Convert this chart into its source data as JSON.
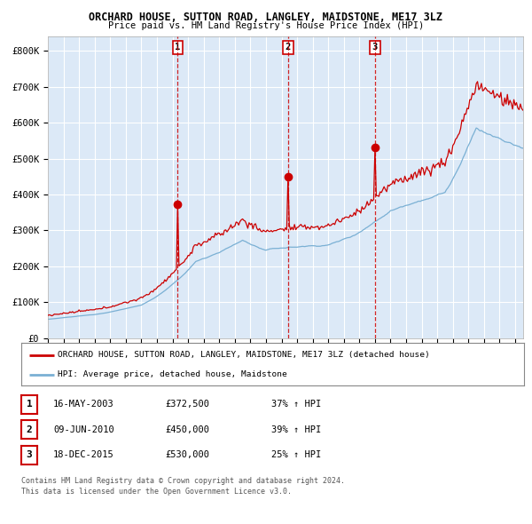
{
  "title": "ORCHARD HOUSE, SUTTON ROAD, LANGLEY, MAIDSTONE, ME17 3LZ",
  "subtitle": "Price paid vs. HM Land Registry's House Price Index (HPI)",
  "plot_bg_color": "#dce9f7",
  "red_line_color": "#cc0000",
  "blue_line_color": "#7ab0d4",
  "grid_color": "#ffffff",
  "purchases": [
    {
      "date_num": 2003.37,
      "price": 372500,
      "label": "1",
      "date_str": "16-MAY-2003",
      "pct": "37%"
    },
    {
      "date_num": 2010.44,
      "price": 450000,
      "label": "2",
      "date_str": "09-JUN-2010",
      "pct": "39%"
    },
    {
      "date_num": 2015.96,
      "price": 530000,
      "label": "3",
      "date_str": "18-DEC-2015",
      "pct": "25%"
    }
  ],
  "legend_label_red": "ORCHARD HOUSE, SUTTON ROAD, LANGLEY, MAIDSTONE, ME17 3LZ (detached house)",
  "legend_label_blue": "HPI: Average price, detached house, Maidstone",
  "footer1": "Contains HM Land Registry data © Crown copyright and database right 2024.",
  "footer2": "This data is licensed under the Open Government Licence v3.0.",
  "ylim": [
    0,
    840000
  ],
  "xlim_start": 1995.0,
  "xlim_end": 2025.5,
  "yticks": [
    0,
    100000,
    200000,
    300000,
    400000,
    500000,
    600000,
    700000,
    800000
  ],
  "ylabels": [
    "£0",
    "£100K",
    "£200K",
    "£300K",
    "£400K",
    "£500K",
    "£600K",
    "£700K",
    "£800K"
  ]
}
